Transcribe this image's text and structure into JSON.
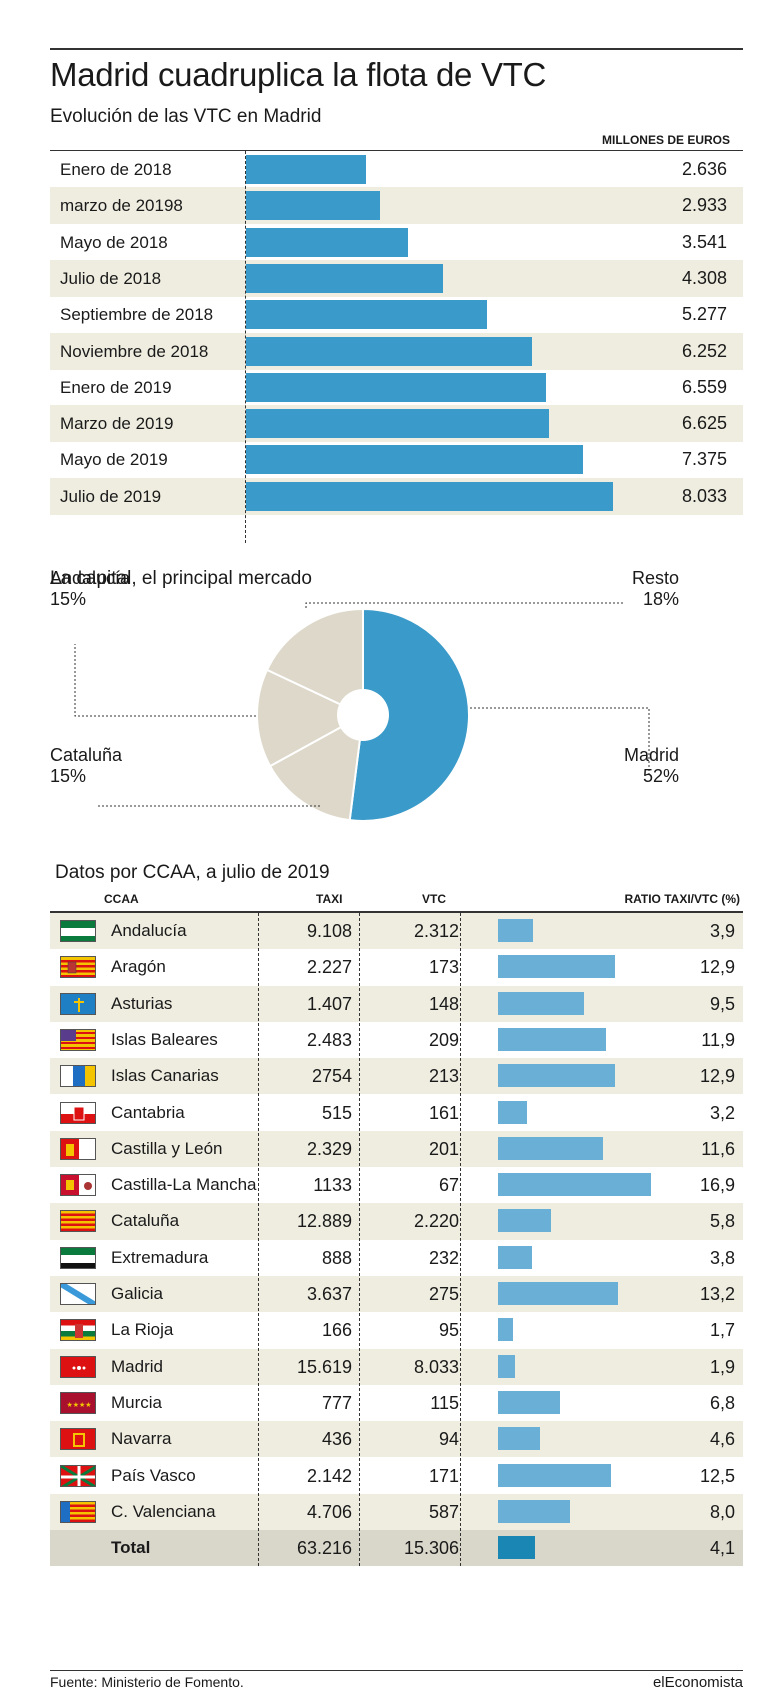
{
  "title": "Madrid cuadruplica la flota de VTC",
  "subtitle": "Evolución de las VTC en Madrid",
  "unit_label": "MILLONES DE EUROS",
  "section2_title": "La capital, el principal mercado",
  "section3_title": "Datos por CCAA, a julio de 2019",
  "table_headers": {
    "ccaa": "CCAA",
    "taxi": "TAXI",
    "vtc": "VTC",
    "ratio": "RATIO TAXI/VTC (%)"
  },
  "source": "Fuente: Ministerio de Fomento.",
  "brand": "elEconomista",
  "colors": {
    "bar": "#3a9ac9",
    "bar_light": "#6ab0d6",
    "bar_total": "#1a86b3",
    "pie_main": "#3a9ac9",
    "pie_rest": "#ddd8ca",
    "shade": "#efede0"
  },
  "chart_data": [
    {
      "type": "bar",
      "orientation": "horizontal",
      "categories": [
        "Enero de 2018",
        "marzo de 20198",
        "Mayo de 2018",
        "Julio de 2018",
        "Septiembre de 2018",
        "Noviembre de 2018",
        "Enero de 2019",
        "Marzo de 2019",
        "Mayo de 2019",
        "Julio de 2019"
      ],
      "values": [
        2636,
        2933,
        3541,
        4308,
        5277,
        6252,
        6559,
        6625,
        7375,
        8033
      ],
      "value_labels": [
        "2.636",
        "2.933",
        "3.541",
        "4.308",
        "5.277",
        "6.252",
        "6.559",
        "6.625",
        "7.375",
        "8.033"
      ],
      "xlim": [
        0,
        8033
      ]
    },
    {
      "type": "pie",
      "donut": true,
      "slices": [
        {
          "label": "Madrid",
          "value": 52,
          "display": "52%",
          "color": "#3a9ac9"
        },
        {
          "label": "Cataluña",
          "value": 15,
          "display": "15%",
          "color": "#ddd8ca"
        },
        {
          "label": "Andalucía",
          "value": 15,
          "display": "15%",
          "color": "#ddd8ca"
        },
        {
          "label": "Resto",
          "value": 18,
          "display": "18%",
          "color": "#ddd8ca"
        }
      ]
    },
    {
      "type": "table",
      "rows": [
        {
          "ccaa": "Andalucía",
          "flag": "andalucia-flag",
          "taxi": "9.108",
          "vtc": "2.312",
          "ratio": "3,9",
          "ratio_value": 3.9
        },
        {
          "ccaa": "Aragón",
          "flag": "aragon-flag",
          "taxi": "2.227",
          "vtc": "173",
          "ratio": "12,9",
          "ratio_value": 12.9
        },
        {
          "ccaa": "Asturias",
          "flag": "asturias-flag",
          "taxi": "1.407",
          "vtc": "148",
          "ratio": "9,5",
          "ratio_value": 9.5
        },
        {
          "ccaa": "Islas Baleares",
          "flag": "baleares-flag",
          "taxi": "2.483",
          "vtc": "209",
          "ratio": "11,9",
          "ratio_value": 11.9
        },
        {
          "ccaa": "Islas Canarias",
          "flag": "canarias-flag",
          "taxi": "2754",
          "vtc": "213",
          "ratio": "12,9",
          "ratio_value": 12.9
        },
        {
          "ccaa": "Cantabria",
          "flag": "cantabria-flag",
          "taxi": "515",
          "vtc": "161",
          "ratio": "3,2",
          "ratio_value": 3.2
        },
        {
          "ccaa": "Castilla y León",
          "flag": "castilla-leon-flag",
          "taxi": "2.329",
          "vtc": "201",
          "ratio": "11,6",
          "ratio_value": 11.6
        },
        {
          "ccaa": "Castilla-La Mancha",
          "flag": "castilla-la-mancha-flag",
          "taxi": "1133",
          "vtc": "67",
          "ratio": "16,9",
          "ratio_value": 16.9
        },
        {
          "ccaa": "Cataluña",
          "flag": "cataluna-flag",
          "taxi": "12.889",
          "vtc": "2.220",
          "ratio": "5,8",
          "ratio_value": 5.8
        },
        {
          "ccaa": "Extremadura",
          "flag": "extremadura-flag",
          "taxi": "888",
          "vtc": "232",
          "ratio": "3,8",
          "ratio_value": 3.8
        },
        {
          "ccaa": "Galicia",
          "flag": "galicia-flag",
          "taxi": "3.637",
          "vtc": "275",
          "ratio": "13,2",
          "ratio_value": 13.2
        },
        {
          "ccaa": "La Rioja",
          "flag": "la-rioja-flag",
          "taxi": "166",
          "vtc": "95",
          "ratio": "1,7",
          "ratio_value": 1.7
        },
        {
          "ccaa": "Madrid",
          "flag": "madrid-flag",
          "taxi": "15.619",
          "vtc": "8.033",
          "ratio": "1,9",
          "ratio_value": 1.9
        },
        {
          "ccaa": "Murcia",
          "flag": "murcia-flag",
          "taxi": "777",
          "vtc": "115",
          "ratio": "6,8",
          "ratio_value": 6.8
        },
        {
          "ccaa": "Navarra",
          "flag": "navarra-flag",
          "taxi": "436",
          "vtc": "94",
          "ratio": "4,6",
          "ratio_value": 4.6
        },
        {
          "ccaa": "País Vasco",
          "flag": "pais-vasco-flag",
          "taxi": "2.142",
          "vtc": "171",
          "ratio": "12,5",
          "ratio_value": 12.5
        },
        {
          "ccaa": "C. Valenciana",
          "flag": "valencia-flag",
          "taxi": "4.706",
          "vtc": "587",
          "ratio": "8,0",
          "ratio_value": 8.0
        }
      ],
      "total": {
        "ccaa": "Total",
        "taxi": "63.216",
        "vtc": "15.306",
        "ratio": "4,1",
        "ratio_value": 4.1
      },
      "ratio_max": 16.9
    }
  ]
}
